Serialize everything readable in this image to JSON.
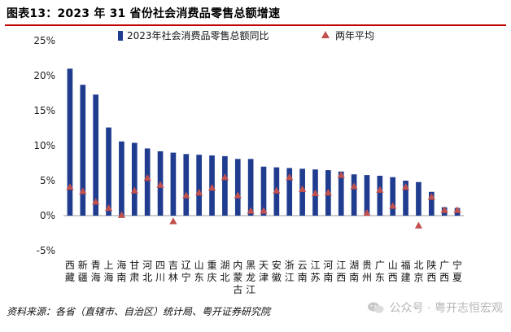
{
  "title": "图表13：2023 年 31 省份社会消费品零售总额增速",
  "source": "资料来源：各省（直辖市、自治区）统计局、粤开证券研究院",
  "watermark": "公众号 · 粤开志恒宏观",
  "watermark_icon": "wechat-icon",
  "colors": {
    "bar": "#1f3c8f",
    "marker": "#c0504d",
    "accent_rule": "#c00000"
  },
  "chart_data": {
    "type": "bar",
    "categories": [
      "西藏",
      "新疆",
      "青海",
      "上海",
      "海南",
      "甘肃",
      "河北",
      "四川",
      "吉林",
      "辽宁",
      "山东",
      "重庆",
      "湖北",
      "内蒙古",
      "黑龙江",
      "天津",
      "安徽",
      "浙江",
      "云南",
      "江苏",
      "河南",
      "江西",
      "湖南",
      "贵州",
      "广东",
      "山西",
      "福建",
      "北京",
      "陕西",
      "广西",
      "宁夏"
    ],
    "category_lines": [
      [
        "西",
        "藏"
      ],
      [
        "新",
        "疆"
      ],
      [
        "青",
        "海"
      ],
      [
        "上",
        "海"
      ],
      [
        "海",
        "南"
      ],
      [
        "甘",
        "肃"
      ],
      [
        "河",
        "北"
      ],
      [
        "四",
        "川"
      ],
      [
        "吉",
        "林"
      ],
      [
        "辽",
        "宁"
      ],
      [
        "山",
        "东"
      ],
      [
        "重",
        "庆"
      ],
      [
        "湖",
        "北"
      ],
      [
        "内",
        "蒙",
        "古"
      ],
      [
        "黑",
        "龙",
        "江"
      ],
      [
        "天",
        "津"
      ],
      [
        "安",
        "徽"
      ],
      [
        "浙",
        "江"
      ],
      [
        "云",
        "南"
      ],
      [
        "江",
        "苏"
      ],
      [
        "河",
        "南"
      ],
      [
        "江",
        "西"
      ],
      [
        "湖",
        "南"
      ],
      [
        "贵",
        "州"
      ],
      [
        "广",
        "东"
      ],
      [
        "山",
        "西"
      ],
      [
        "福",
        "建"
      ],
      [
        "北",
        "京"
      ],
      [
        "陕",
        "西"
      ],
      [
        "广",
        "西"
      ],
      [
        "宁",
        "夏"
      ]
    ],
    "series": [
      {
        "name": "2023年社会消费品零售总额同比",
        "kind": "bar",
        "values": [
          21.0,
          18.7,
          17.3,
          12.6,
          10.6,
          10.4,
          9.6,
          9.2,
          9.0,
          8.8,
          8.7,
          8.6,
          8.5,
          8.1,
          8.1,
          7.0,
          6.9,
          6.8,
          6.7,
          6.6,
          6.5,
          6.3,
          5.9,
          5.8,
          5.7,
          5.5,
          5.0,
          4.8,
          3.4,
          1.2,
          1.1
        ]
      },
      {
        "name": "两年平均",
        "kind": "marker",
        "values": [
          4.1,
          3.5,
          2.0,
          1.1,
          0.1,
          3.6,
          5.4,
          4.4,
          -0.8,
          2.9,
          3.3,
          4.0,
          5.5,
          2.9,
          0.7,
          0.7,
          3.6,
          5.5,
          3.8,
          3.2,
          3.3,
          5.8,
          4.2,
          0.4,
          3.7,
          1.4,
          4.1,
          -1.4,
          2.7,
          0.8,
          0.8
        ]
      }
    ],
    "ylim": [
      -5,
      25
    ],
    "yticks": [
      -5,
      0,
      5,
      10,
      15,
      20,
      25
    ],
    "ytick_labels": [
      "-5%",
      "0%",
      "5%",
      "10%",
      "15%",
      "20%",
      "25%"
    ],
    "legend_position": "top",
    "grid": false
  }
}
